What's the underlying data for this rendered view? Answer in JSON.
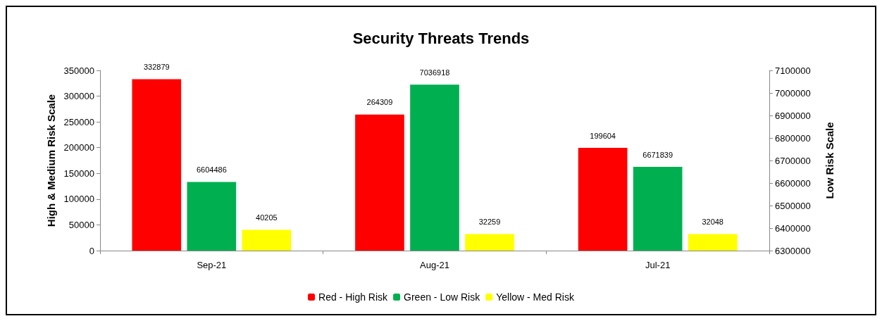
{
  "chart_data": {
    "type": "bar",
    "title": "Security Threats Trends",
    "ylabel": "High & Medium Risk Scale",
    "y2label": "Low Risk Scale",
    "categories": [
      "Sep-21",
      "Aug-21",
      "Jul-21"
    ],
    "series": [
      {
        "name": "Red - High Risk",
        "color": "#ff0000",
        "values": [
          332879,
          264309,
          199604
        ]
      },
      {
        "name": "Green - Low Risk",
        "color": "#00b050",
        "values": [
          6604486,
          7036918,
          6671839
        ],
        "axis": "y2"
      },
      {
        "name": "Yellow - Med Risk",
        "color": "#ffff00",
        "values": [
          40205,
          32259,
          32048
        ]
      }
    ],
    "ylim": [
      0,
      350000
    ],
    "yticks": [
      0,
      50000,
      100000,
      150000,
      200000,
      250000,
      300000,
      350000
    ],
    "y2lim": [
      6300000,
      7100000
    ],
    "y2ticks": [
      6300000,
      6400000,
      6500000,
      6600000,
      6700000,
      6800000,
      6900000,
      7000000,
      7100000
    ],
    "data_labels": true,
    "grid": false,
    "legend": "bottom"
  }
}
